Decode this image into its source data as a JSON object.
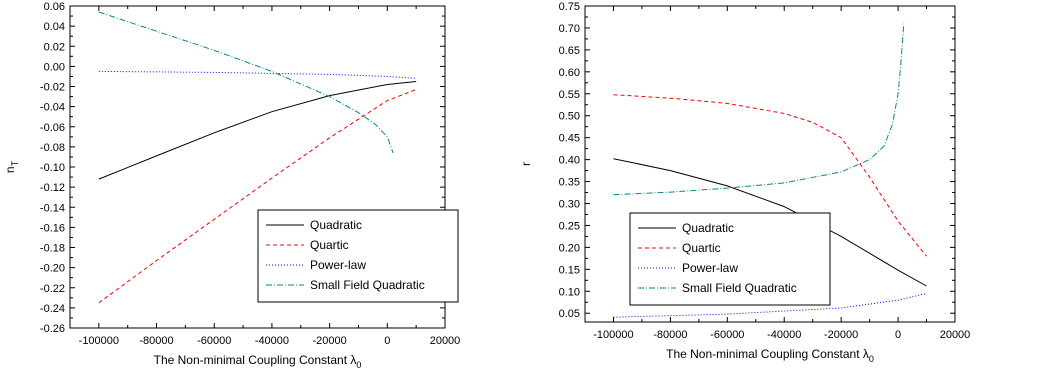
{
  "chart_data": [
    {
      "type": "line",
      "title": "",
      "xlabel": "The Non-minimal Coupling Constant λ",
      "xlabel_sub": "0",
      "ylabel": "n",
      "ylabel_sub": "T",
      "xlim": [
        -110000,
        20000
      ],
      "ylim": [
        -0.26,
        0.06
      ],
      "x_ticks": [
        -100000,
        -80000,
        -60000,
        -40000,
        -20000,
        0,
        20000
      ],
      "x_tick_labels": [
        "-100000",
        "-80000",
        "-60000",
        "-40000",
        "-20000",
        "0",
        "20000"
      ],
      "y_ticks": [
        -0.26,
        -0.24,
        -0.22,
        -0.2,
        -0.18,
        -0.16,
        -0.14,
        -0.12,
        -0.1,
        -0.08,
        -0.06,
        -0.04,
        -0.02,
        0.0,
        0.02,
        0.04,
        0.06
      ],
      "y_tick_labels": [
        "-0.26",
        "-0.24",
        "-0.22",
        "-0.20",
        "-0.18",
        "-0.16",
        "-0.14",
        "-0.12",
        "-0.10",
        "-0.08",
        "-0.06",
        "-0.04",
        "-0.02",
        "0.00",
        "0.02",
        "0.04",
        "0.06"
      ],
      "grid": false,
      "legend_position": "bottom-right",
      "series": [
        {
          "name": "Quadratic",
          "color": "#000000",
          "dash": "",
          "x": [
            -100000,
            -80000,
            -60000,
            -40000,
            -20000,
            0,
            10000
          ],
          "y": [
            -0.112,
            -0.089,
            -0.066,
            -0.045,
            -0.029,
            -0.018,
            -0.015
          ]
        },
        {
          "name": "Quartic",
          "color": "#ff0000",
          "dash": "4,3",
          "x": [
            -100000,
            -80000,
            -60000,
            -40000,
            -20000,
            0,
            10000
          ],
          "y": [
            -0.235,
            -0.193,
            -0.152,
            -0.111,
            -0.071,
            -0.034,
            -0.023
          ]
        },
        {
          "name": "Power-law",
          "color": "#0000ff",
          "dash": "1,2",
          "x": [
            -100000,
            -60000,
            -20000,
            0,
            10000
          ],
          "y": [
            -0.005,
            -0.006,
            -0.008,
            -0.01,
            -0.012
          ]
        },
        {
          "name": "Small Field Quadratic",
          "color": "#008b8b",
          "dash": "6,2,1,2",
          "x": [
            -100000,
            -80000,
            -60000,
            -40000,
            -20000,
            -10000,
            -4000,
            0,
            2000
          ],
          "y": [
            0.054,
            0.035,
            0.016,
            -0.005,
            -0.03,
            -0.046,
            -0.058,
            -0.07,
            -0.086
          ]
        }
      ]
    },
    {
      "type": "line",
      "title": "",
      "xlabel": "The Non-minimal Coupling Constant λ",
      "xlabel_sub": "0",
      "ylabel": "r",
      "ylabel_sub": "",
      "xlim": [
        -110000,
        20000
      ],
      "ylim": [
        0.03,
        0.75
      ],
      "x_ticks": [
        -100000,
        -80000,
        -60000,
        -40000,
        -20000,
        0,
        20000
      ],
      "x_tick_labels": [
        "-100000",
        "-80000",
        "-60000",
        "-40000",
        "-20000",
        "0",
        "20000"
      ],
      "y_ticks": [
        0.05,
        0.1,
        0.15,
        0.2,
        0.25,
        0.3,
        0.35,
        0.4,
        0.45,
        0.5,
        0.55,
        0.6,
        0.65,
        0.7,
        0.75
      ],
      "y_tick_labels": [
        "0.05",
        "0.10",
        "0.15",
        "0.20",
        "0.25",
        "0.30",
        "0.35",
        "0.40",
        "0.45",
        "0.50",
        "0.55",
        "0.60",
        "0.65",
        "0.70",
        "0.75"
      ],
      "grid": false,
      "legend_position": "bottom-left",
      "series": [
        {
          "name": "Quadratic",
          "color": "#000000",
          "dash": "",
          "x": [
            -100000,
            -80000,
            -60000,
            -40000,
            -20000,
            0,
            10000
          ],
          "y": [
            0.402,
            0.375,
            0.34,
            0.293,
            0.225,
            0.148,
            0.112
          ]
        },
        {
          "name": "Quartic",
          "color": "#ff0000",
          "dash": "4,3",
          "x": [
            -100000,
            -80000,
            -60000,
            -40000,
            -30000,
            -20000,
            -10000,
            0,
            10000
          ],
          "y": [
            0.548,
            0.54,
            0.528,
            0.505,
            0.485,
            0.45,
            0.36,
            0.26,
            0.18
          ]
        },
        {
          "name": "Power-law",
          "color": "#0000ff",
          "dash": "1,2",
          "x": [
            -100000,
            -60000,
            -20000,
            0,
            10000
          ],
          "y": [
            0.041,
            0.048,
            0.062,
            0.08,
            0.095
          ]
        },
        {
          "name": "Small Field Quadratic",
          "color": "#008b8b",
          "dash": "6,2,1,2",
          "x": [
            -100000,
            -80000,
            -60000,
            -40000,
            -20000,
            -10000,
            -5000,
            -2000,
            0,
            1000,
            2000
          ],
          "y": [
            0.32,
            0.326,
            0.335,
            0.347,
            0.372,
            0.4,
            0.43,
            0.48,
            0.55,
            0.62,
            0.71
          ]
        }
      ]
    }
  ]
}
